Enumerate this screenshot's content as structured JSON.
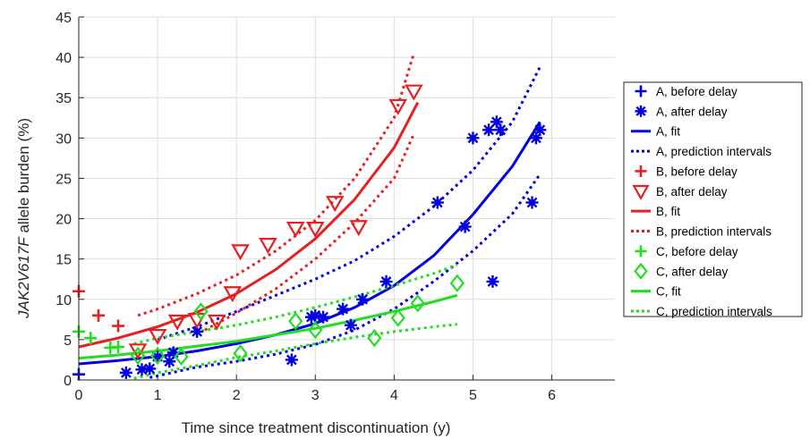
{
  "chart_data": {
    "type": "scatter",
    "xlabel": "Time since treatment discontinuation (y)",
    "ylabel_italic": "JAK2V617F",
    "ylabel_rest": " allele burden (%)",
    "xlim": [
      0,
      6.8
    ],
    "ylim": [
      0,
      45
    ],
    "xticks": [
      "0",
      "1",
      "2",
      "3",
      "4",
      "5",
      "6"
    ],
    "yticks": [
      "0",
      "5",
      "10",
      "15",
      "20",
      "25",
      "30",
      "35",
      "40",
      "45"
    ],
    "grid": true,
    "legend_position": "outside right",
    "colors": {
      "A": "#0000e0",
      "B": "#e52020",
      "C": "#22dd22"
    },
    "series": [
      {
        "name": "A, before delay",
        "group": "A",
        "kind": "plus",
        "points": [
          [
            0.0,
            0.7
          ]
        ]
      },
      {
        "name": "A, after delay",
        "group": "A",
        "kind": "asterisk",
        "points": [
          [
            0.6,
            0.9
          ],
          [
            0.8,
            1.3
          ],
          [
            0.9,
            1.4
          ],
          [
            1.0,
            2.9
          ],
          [
            1.15,
            2.3
          ],
          [
            1.2,
            3.4
          ],
          [
            1.5,
            6.0
          ],
          [
            2.7,
            2.5
          ],
          [
            2.95,
            7.8
          ],
          [
            3.0,
            8.0
          ],
          [
            3.1,
            7.8
          ],
          [
            3.35,
            8.8
          ],
          [
            3.45,
            6.8
          ],
          [
            3.6,
            10.0
          ],
          [
            3.9,
            12.2
          ],
          [
            4.55,
            22.0
          ],
          [
            4.9,
            19.0
          ],
          [
            5.0,
            30.0
          ],
          [
            5.2,
            31.0
          ],
          [
            5.25,
            12.2
          ],
          [
            5.3,
            32.0
          ],
          [
            5.35,
            31.0
          ],
          [
            5.75,
            22.0
          ],
          [
            5.8,
            30.0
          ],
          [
            5.85,
            31.0
          ]
        ]
      },
      {
        "name": "A, fit",
        "group": "A",
        "kind": "fit",
        "points": [
          [
            0.0,
            2.0
          ],
          [
            0.5,
            2.4
          ],
          [
            1.0,
            2.9
          ],
          [
            1.5,
            3.6
          ],
          [
            2.0,
            4.5
          ],
          [
            2.5,
            5.6
          ],
          [
            3.0,
            7.0
          ],
          [
            3.5,
            9.0
          ],
          [
            4.0,
            11.7
          ],
          [
            4.5,
            15.4
          ],
          [
            5.0,
            20.5
          ],
          [
            5.5,
            26.5
          ],
          [
            5.85,
            32.0
          ]
        ]
      },
      {
        "name": "A, prediction intervals",
        "group": "A",
        "kind": "pi",
        "points": [
          [
            1.0,
            5.0
          ],
          [
            1.5,
            6.6
          ],
          [
            2.0,
            8.5
          ],
          [
            2.5,
            10.5
          ],
          [
            3.0,
            12.5
          ],
          [
            3.5,
            14.8
          ],
          [
            4.0,
            17.8
          ],
          [
            4.5,
            21.5
          ],
          [
            5.0,
            26.0
          ],
          [
            5.5,
            32.0
          ],
          [
            5.85,
            38.8
          ]
        ],
        "points2": [
          [
            0.9,
            0.3
          ],
          [
            1.5,
            1.6
          ],
          [
            2.0,
            2.3
          ],
          [
            2.5,
            3.2
          ],
          [
            3.0,
            4.4
          ],
          [
            3.5,
            6.2
          ],
          [
            4.0,
            8.8
          ],
          [
            4.5,
            12.2
          ],
          [
            5.0,
            16.0
          ],
          [
            5.5,
            20.6
          ],
          [
            5.85,
            25.5
          ]
        ]
      },
      {
        "name": "B, before delay",
        "group": "B",
        "kind": "plus",
        "points": [
          [
            0.0,
            11.0
          ],
          [
            0.25,
            8.0
          ],
          [
            0.5,
            6.7
          ]
        ]
      },
      {
        "name": "B, after delay",
        "group": "B",
        "kind": "triangle",
        "points": [
          [
            0.75,
            3.7
          ],
          [
            1.0,
            5.5
          ],
          [
            1.25,
            7.3
          ],
          [
            1.5,
            7.5
          ],
          [
            1.75,
            7.3
          ],
          [
            1.95,
            10.8
          ],
          [
            2.05,
            16.0
          ],
          [
            2.4,
            16.8
          ],
          [
            2.75,
            18.8
          ],
          [
            3.0,
            18.8
          ],
          [
            3.25,
            22.0
          ],
          [
            3.55,
            19.0
          ],
          [
            4.05,
            34.0
          ],
          [
            4.25,
            35.8
          ]
        ]
      },
      {
        "name": "B, fit",
        "group": "B",
        "kind": "fit",
        "points": [
          [
            0.0,
            4.1
          ],
          [
            0.5,
            5.2
          ],
          [
            1.0,
            6.6
          ],
          [
            1.5,
            8.4
          ],
          [
            2.0,
            10.7
          ],
          [
            2.5,
            13.7
          ],
          [
            3.0,
            17.5
          ],
          [
            3.5,
            22.4
          ],
          [
            4.0,
            28.8
          ],
          [
            4.3,
            34.4
          ]
        ]
      },
      {
        "name": "B, prediction intervals",
        "group": "B",
        "kind": "pi",
        "points": [
          [
            0.75,
            8.0
          ],
          [
            1.0,
            8.8
          ],
          [
            1.5,
            10.7
          ],
          [
            2.0,
            13.0
          ],
          [
            2.5,
            16.0
          ],
          [
            3.0,
            19.8
          ],
          [
            3.5,
            25.0
          ],
          [
            4.0,
            32.5
          ],
          [
            4.25,
            40.5
          ]
        ],
        "points2": [
          [
            1.6,
            6.2
          ],
          [
            2.0,
            8.3
          ],
          [
            2.5,
            11.3
          ],
          [
            3.0,
            15.0
          ],
          [
            3.5,
            19.5
          ],
          [
            4.0,
            25.0
          ],
          [
            4.25,
            30.5
          ]
        ]
      },
      {
        "name": "C, before delay",
        "group": "C",
        "kind": "plus",
        "points": [
          [
            0.0,
            6.0
          ],
          [
            0.15,
            5.2
          ],
          [
            0.4,
            4.0
          ],
          [
            0.5,
            4.1
          ]
        ]
      },
      {
        "name": "C, after delay",
        "group": "C",
        "kind": "diamond",
        "points": [
          [
            0.75,
            3.0
          ],
          [
            1.0,
            3.0
          ],
          [
            1.3,
            2.9
          ],
          [
            1.55,
            8.5
          ],
          [
            2.05,
            3.3
          ],
          [
            2.75,
            7.3
          ],
          [
            3.0,
            6.2
          ],
          [
            3.75,
            5.2
          ],
          [
            4.05,
            7.7
          ],
          [
            4.3,
            9.5
          ],
          [
            4.8,
            12.0
          ]
        ]
      },
      {
        "name": "C, fit",
        "group": "C",
        "kind": "fit",
        "points": [
          [
            0.0,
            2.7
          ],
          [
            0.5,
            3.1
          ],
          [
            1.0,
            3.6
          ],
          [
            1.5,
            4.2
          ],
          [
            2.0,
            4.8
          ],
          [
            2.5,
            5.6
          ],
          [
            3.0,
            6.4
          ],
          [
            3.5,
            7.4
          ],
          [
            4.0,
            8.5
          ],
          [
            4.5,
            9.7
          ],
          [
            4.8,
            10.5
          ]
        ]
      },
      {
        "name": "C, prediction intervals",
        "group": "C",
        "kind": "pi",
        "points": [
          [
            0.7,
            4.5
          ],
          [
            1.0,
            5.2
          ],
          [
            1.5,
            6.0
          ],
          [
            2.0,
            6.8
          ],
          [
            2.5,
            7.8
          ],
          [
            3.0,
            9.0
          ],
          [
            3.5,
            10.3
          ],
          [
            4.0,
            11.7
          ],
          [
            4.5,
            13.2
          ],
          [
            4.8,
            14.3
          ]
        ],
        "points2": [
          [
            0.7,
            0.2
          ],
          [
            1.0,
            0.9
          ],
          [
            1.5,
            1.8
          ],
          [
            2.0,
            2.8
          ],
          [
            2.5,
            3.6
          ],
          [
            3.0,
            4.5
          ],
          [
            3.5,
            5.3
          ],
          [
            4.0,
            6.0
          ],
          [
            4.5,
            6.6
          ],
          [
            4.8,
            6.9
          ]
        ]
      }
    ]
  }
}
